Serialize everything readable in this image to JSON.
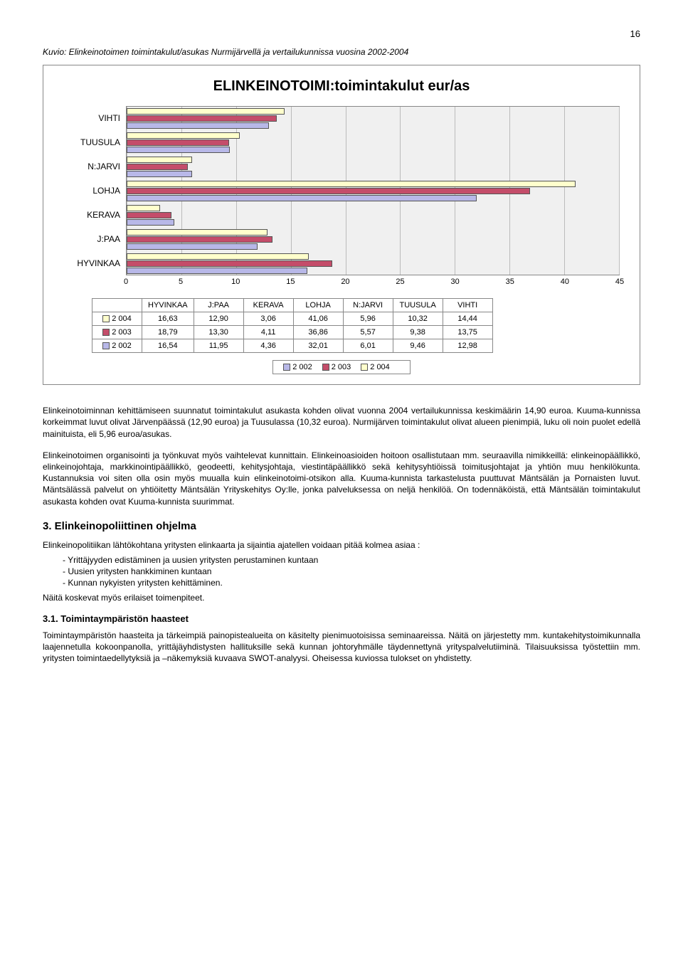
{
  "page_number": "16",
  "caption": "Kuvio: Elinkeinotoimen toimintakulut/asukas Nurmijärvellä ja vertailukunnissa vuosina 2002-2004",
  "chart": {
    "title": "ELINKEINOTOIMI:toimintakulut eur/as",
    "type": "horizontal_bar",
    "categories": [
      "VIHTI",
      "TUUSULA",
      "N:JARVI",
      "LOHJA",
      "KERAVA",
      "J:PAA",
      "HYVINKAA"
    ],
    "series": [
      {
        "label": "2 004",
        "color": "#ffffcc"
      },
      {
        "label": "2 003",
        "color": "#c44d6a"
      },
      {
        "label": "2 002",
        "color": "#b8b8e8"
      }
    ],
    "columns": [
      "HYVINKAA",
      "J:PAA",
      "KERAVA",
      "LOHJA",
      "N:JARVI",
      "TUUSULA",
      "VIHTI"
    ],
    "rows": [
      {
        "label": "2 004",
        "color": "#ffffcc",
        "values": [
          "16,63",
          "12,90",
          "3,06",
          "41,06",
          "5,96",
          "10,32",
          "14,44"
        ]
      },
      {
        "label": "2 003",
        "color": "#c44d6a",
        "values": [
          "18,79",
          "13,30",
          "4,11",
          "36,86",
          "5,57",
          "9,38",
          "13,75"
        ]
      },
      {
        "label": "2 002",
        "color": "#b8b8e8",
        "values": [
          "16,54",
          "11,95",
          "4,36",
          "32,01",
          "6,01",
          "9,46",
          "12,98"
        ]
      }
    ],
    "xlim": [
      0,
      45
    ],
    "xticks": [
      0,
      5,
      10,
      15,
      20,
      25,
      30,
      35,
      40,
      45
    ],
    "grid_color": "#bbbbbb",
    "plot_bg": "#f0f0f0",
    "legend_bottom": [
      "2 002",
      "2 003",
      "2 004"
    ]
  },
  "para1": "Elinkeinotoiminnan kehittämiseen suunnatut toimintakulut asukasta kohden olivat vuonna 2004 vertailukunnissa keskimäärin 14,90 euroa. Kuuma-kunnissa korkeimmat luvut olivat Järvenpäässä (12,90 euroa) ja Tuusulassa (10,32 euroa). Nurmijärven toimintakulut olivat alueen pienimpiä, luku oli noin puolet edellä mainituista, eli 5,96 euroa/asukas.",
  "para2": "Elinkeinotoimen organisointi ja työnkuvat myös vaihtelevat kunnittain. Elinkeinoasioiden hoitoon osallistutaan mm. seuraavilla nimikkeillä: elinkeinopäällikkö, elinkeinojohtaja, markkinointipäällikkö, geodeetti, kehitysjohtaja, viestintäpäällikkö sekä kehitysyhtiöissä toimitusjohtajat ja yhtiön muu henkilökunta. Kustannuksia voi siten olla osin myös muualla kuin elinkeinotoimi-otsikon alla. Kuuma-kunnista tarkastelusta puuttuvat Mäntsälän ja Pornaisten luvut. Mäntsälässä palvelut on yhtiöitetty Mäntsälän Yrityskehitys Oy:lle, jonka palveluksessa on neljä henkilöä. On todennäköistä, että Mäntsälän toimintakulut asukasta kohden ovat Kuuma-kunnista suurimmat.",
  "section3_title": "3. Elinkeinopoliittinen ohjelma",
  "section3_intro": "Elinkeinopolitiikan lähtökohtana yritysten elinkaarta ja sijaintia ajatellen voidaan pitää kolmea asiaa :",
  "section3_bullets": [
    "- Yrittäjyyden edistäminen ja uusien yritysten perustaminen kuntaan",
    "- Uusien yritysten hankkiminen kuntaan",
    "- Kunnan nykyisten yritysten kehittäminen."
  ],
  "section3_outro": "Näitä koskevat myös erilaiset toimenpiteet.",
  "section31_title": "3.1. Toimintaympäristön haasteet",
  "section31_para": "Toimintaympäristön haasteita ja tärkeimpiä painopistealueita on käsitelty pienimuotoisissa seminaareissa. Näitä on järjestetty mm. kuntakehitystoimikunnalla laajennetulla kokoonpanolla, yrittäjäyhdistysten hallituksille sekä kunnan johtoryhmälle täydennettynä yrityspalvelutiiminä. Tilaisuuksissa työstettiin mm. yritysten toimintaedellytyksiä ja –näkemyksiä kuvaava SWOT-analyysi. Oheisessa kuviossa tulokset on yhdistetty."
}
